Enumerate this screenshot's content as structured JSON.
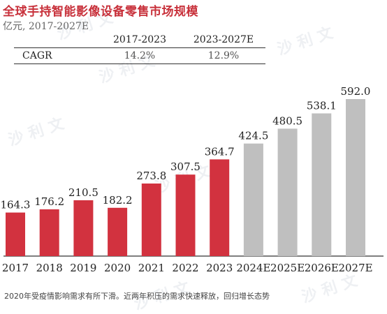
{
  "title": "全球手持智能影像设备零售市场规模",
  "subtitle": "亿元, 2017-2027E",
  "watermark": "沙利文",
  "table": {
    "headers": [
      "",
      "2017-2023",
      "2023-2027E"
    ],
    "rows": [
      {
        "label": "CAGR",
        "values": [
          "14.2%",
          "12.9%"
        ]
      }
    ]
  },
  "footnote": "2020年受疫情影响需求有所下滑。近两年积压的需求快速释放，回归增长态势",
  "chart_data": {
    "type": "bar",
    "categories": [
      "2017",
      "2018",
      "2019",
      "2020",
      "2021",
      "2022",
      "2023",
      "2024E",
      "2025E",
      "2026E",
      "2027E"
    ],
    "values": [
      164.3,
      176.2,
      210.5,
      182.2,
      273.8,
      307.5,
      364.7,
      424.5,
      480.5,
      538.1,
      592.0
    ],
    "value_labels": [
      "164.3",
      "176.2",
      "210.5",
      "182.2",
      "273.8",
      "307.5",
      "364.7",
      "424.5",
      "480.5",
      "538.1",
      "592.0"
    ],
    "colors": {
      "actual": "#d2323f",
      "forecast": "#bfbfbf"
    },
    "forecast_from_index": 7,
    "grid": false,
    "legend": "none"
  }
}
